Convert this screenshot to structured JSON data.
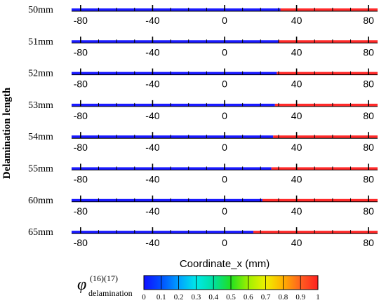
{
  "chart_data": {
    "type": "bar",
    "orientation": "horizontal",
    "ylabel": "Delamination length",
    "xlabel": "Coordinate_x (mm)",
    "xlim": [
      -85,
      85
    ],
    "x_ticks": [
      "-80",
      "-40",
      "0",
      "40",
      "80"
    ],
    "rows": [
      {
        "label": "50mm",
        "boundary_x": 31
      },
      {
        "label": "51mm",
        "boundary_x": 30
      },
      {
        "label": "52mm",
        "boundary_x": 29
      },
      {
        "label": "53mm",
        "boundary_x": 28
      },
      {
        "label": "54mm",
        "boundary_x": 27
      },
      {
        "label": "55mm",
        "boundary_x": 26
      },
      {
        "label": "60mm",
        "boundary_x": 21
      },
      {
        "label": "65mm",
        "boundary_x": 16
      }
    ],
    "left_value": 0,
    "right_value": 1,
    "colorbar": {
      "label_symbol": "φ",
      "label_superscript": "(16)(17)",
      "label_subscript": "delamination",
      "ticks": [
        "0",
        "0.1",
        "0.2",
        "0.3",
        "0.4",
        "0.5",
        "0.6",
        "0.7",
        "0.8",
        "0.9",
        "1"
      ],
      "colors": [
        "#1010ff",
        "#0050ff",
        "#00a0ff",
        "#00e8e8",
        "#00e0a0",
        "#20e020",
        "#a0f000",
        "#f0f000",
        "#ffb000",
        "#ff6020",
        "#ff2020"
      ]
    }
  },
  "colors": {
    "left": "#1a1aff",
    "right": "#ff2a2a",
    "axis": "#000000"
  }
}
